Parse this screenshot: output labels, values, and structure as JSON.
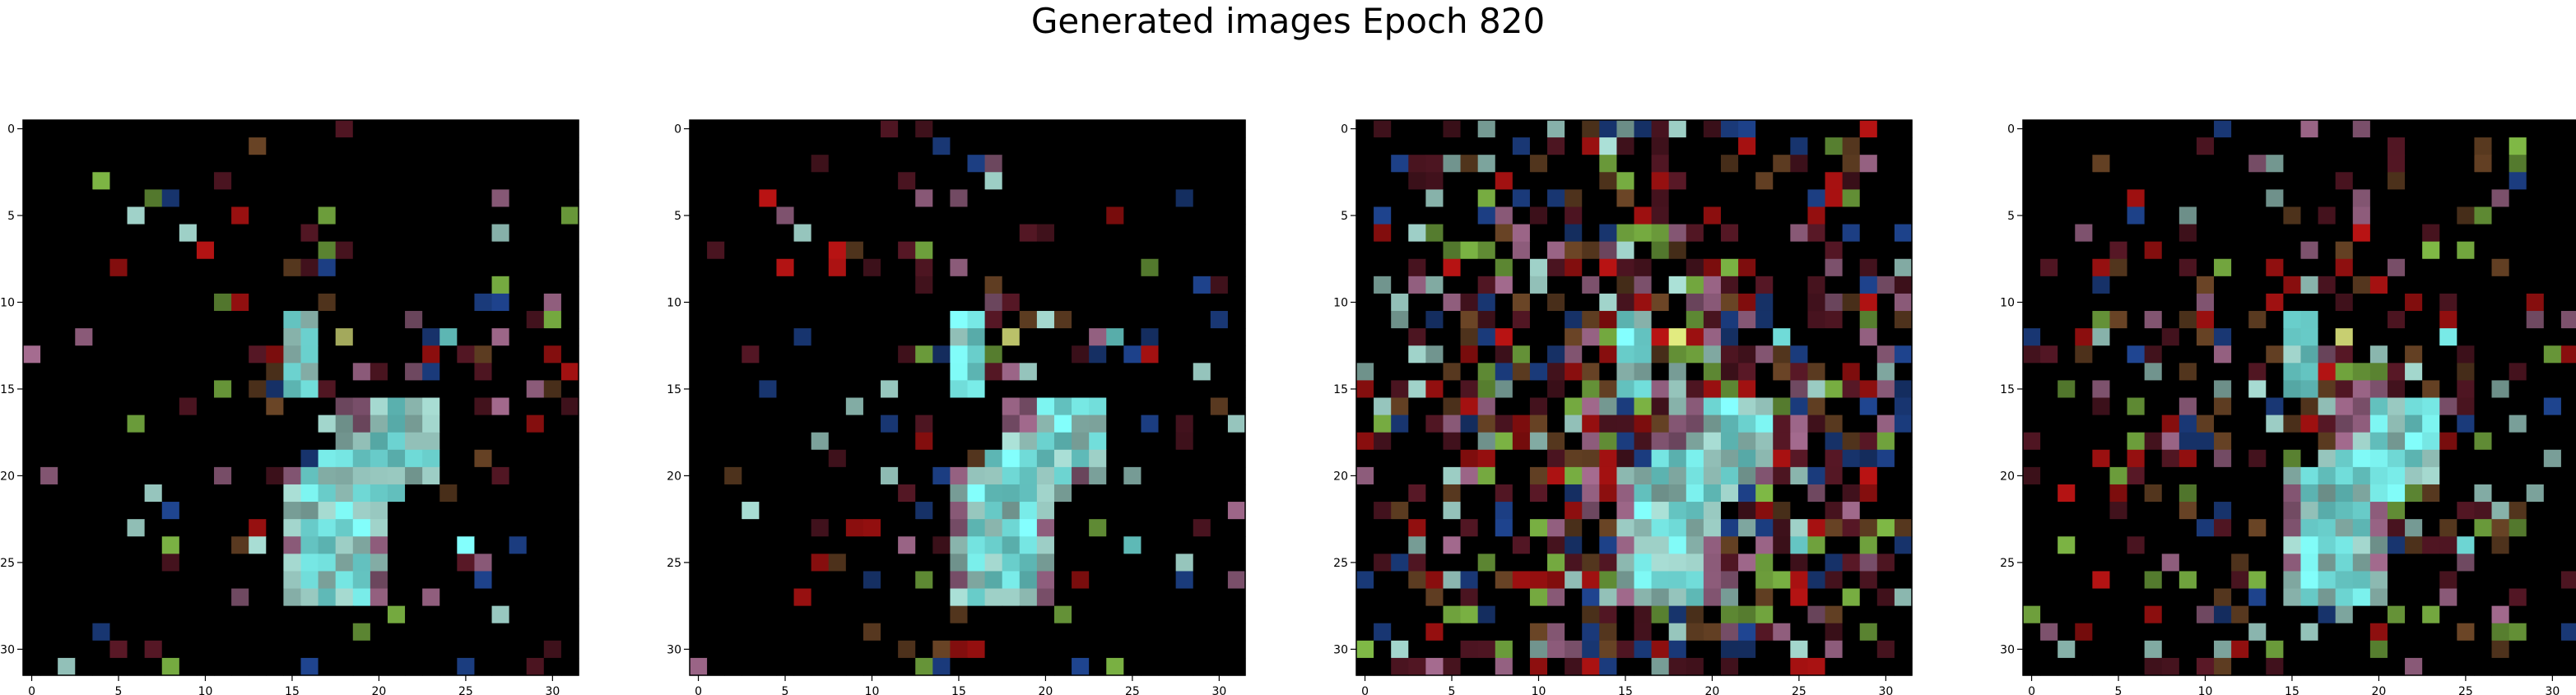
{
  "figure": {
    "title": "Generated images Epoch 820"
  },
  "chart_data": [
    {
      "type": "heatmap",
      "xlim": [
        -0.5,
        31.5
      ],
      "ylim": [
        31.5,
        -0.5
      ],
      "xticks": [
        "0",
        "5",
        "10",
        "15",
        "20",
        "25",
        "30"
      ],
      "yticks": [
        "0",
        "5",
        "10",
        "15",
        "20",
        "25",
        "30"
      ],
      "grid": false
    },
    {
      "type": "heatmap",
      "xlim": [
        -0.5,
        31.5
      ],
      "ylim": [
        31.5,
        -0.5
      ],
      "xticks": [
        "0",
        "5",
        "10",
        "15",
        "20",
        "25",
        "30"
      ],
      "yticks": [
        "0",
        "5",
        "10",
        "15",
        "20",
        "25",
        "30"
      ],
      "grid": false
    },
    {
      "type": "heatmap",
      "xlim": [
        -0.5,
        31.5
      ],
      "ylim": [
        31.5,
        -0.5
      ],
      "xticks": [
        "0",
        "5",
        "10",
        "15",
        "20",
        "25",
        "30"
      ],
      "yticks": [
        "0",
        "5",
        "10",
        "15",
        "20",
        "25",
        "30"
      ],
      "grid": false
    },
    {
      "type": "heatmap",
      "xlim": [
        -0.5,
        31.5
      ],
      "ylim": [
        31.5,
        -0.5
      ],
      "xticks": [
        "0",
        "5",
        "10",
        "15",
        "20",
        "25",
        "30"
      ],
      "yticks": [
        "0",
        "5",
        "10",
        "15",
        "20",
        "25",
        "30"
      ],
      "grid": false
    }
  ],
  "palette": {
    "background": "#000000",
    "cyan": "#6fd9d6",
    "teal_gray": "#8fbcb4",
    "maroon": "#4a1420",
    "red": "#9a1010",
    "brown": "#5a3a20",
    "yellow": "#d8e07a",
    "green": "#6a9a3a",
    "mauve": "#8a5a78",
    "blue": "#1a3a7a"
  }
}
